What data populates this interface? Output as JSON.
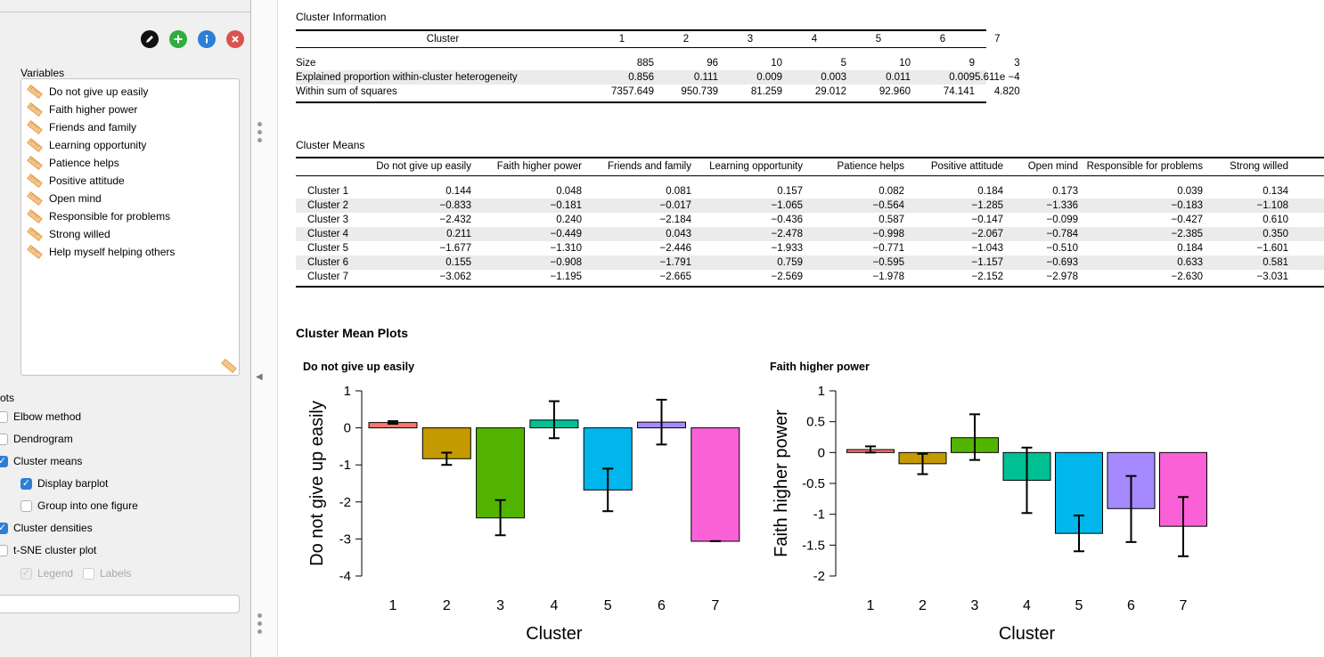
{
  "toolbar": {
    "icons": [
      "edit-icon",
      "add-icon",
      "info-icon",
      "close-icon"
    ],
    "colors": {
      "edit": "#111111",
      "add": "#2fae3f",
      "info": "#2d7fd6",
      "close": "#d9534f"
    }
  },
  "left_panel": {
    "variables_label": "Variables",
    "variables": [
      "Do not give up easily",
      "Faith higher power",
      "Friends and family",
      "Learning opportunity",
      "Patience helps",
      "Positive attitude",
      "Open mind",
      "Responsible for problems",
      "Strong willed",
      "Help myself helping others"
    ],
    "plots_section_label": "ots",
    "options": [
      {
        "label": "Elbow method",
        "checked": false,
        "enabled": true
      },
      {
        "label": "Dendrogram",
        "checked": false,
        "enabled": true
      },
      {
        "label": "Cluster means",
        "checked": true,
        "enabled": true
      },
      {
        "label": "Display barplot",
        "checked": true,
        "enabled": true
      },
      {
        "label": "Group into one figure",
        "checked": false,
        "enabled": true
      },
      {
        "label": "Cluster densities",
        "checked": true,
        "enabled": true
      },
      {
        "label": "t-SNE cluster plot",
        "checked": false,
        "enabled": true
      }
    ],
    "legend_option": {
      "label": "Legend",
      "checked": true,
      "enabled": false
    },
    "labels_option": {
      "label": "Labels",
      "checked": false,
      "enabled": false
    }
  },
  "cluster_info": {
    "title": "Cluster Information",
    "header_label": "Cluster",
    "clusters": [
      "1",
      "2",
      "3",
      "4",
      "5",
      "6",
      "7"
    ],
    "rows": [
      {
        "label": "Size",
        "values": [
          "885",
          "96",
          "10",
          "5",
          "10",
          "9",
          "3"
        ]
      },
      {
        "label": "Explained proportion within-cluster heterogeneity",
        "values": [
          "0.856",
          "0.111",
          "0.009",
          "0.003",
          "0.011",
          "0.009",
          "5.611e −4"
        ]
      },
      {
        "label": "Within sum of squares",
        "values": [
          "7357.649",
          "950.739",
          "81.259",
          "29.012",
          "92.960",
          "74.141",
          "4.820"
        ]
      }
    ]
  },
  "cluster_means": {
    "title": "Cluster Means",
    "columns": [
      "Do not give up easily",
      "Faith higher power",
      "Friends and family",
      "Learning opportunity",
      "Patience helps",
      "Positive attitude",
      "Open mind",
      "Responsible for problems",
      "Strong willed"
    ],
    "rows": [
      {
        "label": "Cluster 1",
        "values": [
          "0.144",
          "0.048",
          "0.081",
          "0.157",
          "0.082",
          "0.184",
          "0.173",
          "0.039",
          "0.134"
        ]
      },
      {
        "label": "Cluster 2",
        "values": [
          "−0.833",
          "−0.181",
          "−0.017",
          "−1.065",
          "−0.564",
          "−1.285",
          "−1.336",
          "−0.183",
          "−1.108"
        ]
      },
      {
        "label": "Cluster 3",
        "values": [
          "−2.432",
          "0.240",
          "−2.184",
          "−0.436",
          "0.587",
          "−0.147",
          "−0.099",
          "−0.427",
          "0.610"
        ]
      },
      {
        "label": "Cluster 4",
        "values": [
          "0.211",
          "−0.449",
          "0.043",
          "−2.478",
          "−0.998",
          "−2.067",
          "−0.784",
          "−2.385",
          "0.350"
        ]
      },
      {
        "label": "Cluster 5",
        "values": [
          "−1.677",
          "−1.310",
          "−2.446",
          "−1.933",
          "−0.771",
          "−1.043",
          "−0.510",
          "0.184",
          "−1.601"
        ]
      },
      {
        "label": "Cluster 6",
        "values": [
          "0.155",
          "−0.908",
          "−1.791",
          "0.759",
          "−0.595",
          "−1.157",
          "−0.693",
          "0.633",
          "0.581"
        ]
      },
      {
        "label": "Cluster 7",
        "values": [
          "−3.062",
          "−1.195",
          "−2.665",
          "−2.569",
          "−1.978",
          "−2.152",
          "−2.978",
          "−2.630",
          "−3.031"
        ]
      }
    ]
  },
  "plots": {
    "section_title": "Cluster Mean Plots"
  },
  "chart_data": [
    {
      "type": "bar",
      "title": "Do not give up easily",
      "xlabel": "Cluster",
      "ylabel": "Do not give up easily",
      "categories": [
        "1",
        "2",
        "3",
        "4",
        "5",
        "6",
        "7"
      ],
      "values": [
        0.144,
        -0.833,
        -2.432,
        0.211,
        -1.677,
        0.155,
        -3.062
      ],
      "error_low": [
        0.11,
        -1.0,
        -2.9,
        -0.28,
        -2.25,
        -0.45,
        -3.06
      ],
      "error_high": [
        0.18,
        -0.67,
        -1.95,
        0.72,
        -1.1,
        0.76,
        -3.06
      ],
      "ylim": [
        -4,
        1
      ],
      "yticks": [
        1,
        0,
        -1,
        -2,
        -3,
        -4
      ],
      "colors": [
        "#f8766d",
        "#c49a00",
        "#53b400",
        "#00c094",
        "#00b6eb",
        "#a58aff",
        "#fb61d7"
      ],
      "grid": false
    },
    {
      "type": "bar",
      "title": "Faith higher power",
      "xlabel": "Cluster",
      "ylabel": "Faith higher power",
      "categories": [
        "1",
        "2",
        "3",
        "4",
        "5",
        "6",
        "7"
      ],
      "values": [
        0.048,
        -0.181,
        0.24,
        -0.449,
        -1.31,
        -0.908,
        -1.195
      ],
      "error_low": [
        0.0,
        -0.35,
        -0.12,
        -0.98,
        -1.6,
        -1.45,
        -1.68
      ],
      "error_high": [
        0.1,
        -0.02,
        0.62,
        0.08,
        -1.02,
        -0.38,
        -0.72
      ],
      "ylim": [
        -2,
        1
      ],
      "yticks": [
        1,
        0.5,
        0,
        -0.5,
        -1,
        -1.5,
        -2
      ],
      "ytick_labels": [
        "1",
        "0.5",
        "0",
        "-0.5",
        "-1",
        "-1.5",
        "-2"
      ],
      "colors": [
        "#f8766d",
        "#c49a00",
        "#53b400",
        "#00c094",
        "#00b6eb",
        "#a58aff",
        "#fb61d7"
      ],
      "grid": false
    }
  ]
}
